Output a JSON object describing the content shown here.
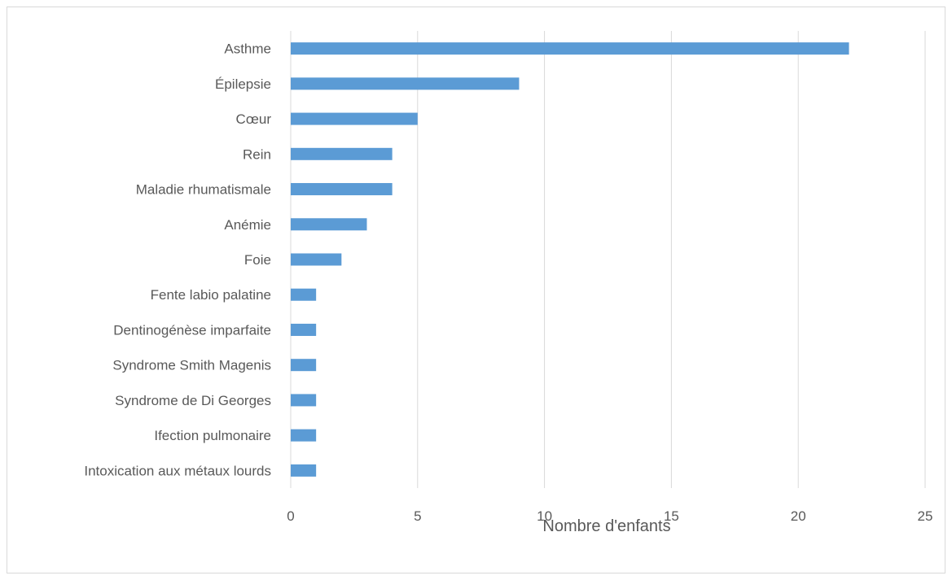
{
  "chart_data": {
    "type": "bar",
    "orientation": "horizontal",
    "categories": [
      "Asthme",
      "Épilepsie",
      "Cœur",
      "Rein",
      "Maladie rhumatismale",
      "Anémie",
      "Foie",
      "Fente labio palatine",
      "Dentinogénèse imparfaite",
      "Syndrome Smith Magenis",
      "Syndrome de Di Georges",
      "Ifection pulmonaire",
      "Intoxication aux métaux lourds"
    ],
    "values": [
      22,
      9,
      5,
      4,
      4,
      3,
      2,
      1,
      1,
      1,
      1,
      1,
      1
    ],
    "xlabel": "Nombre d'enfants",
    "ylabel": "",
    "xlim": [
      0,
      25
    ],
    "xticks": [
      0,
      5,
      10,
      15,
      20,
      25
    ],
    "grid": true,
    "legend": "none",
    "bar_color": "#5b9bd5"
  }
}
